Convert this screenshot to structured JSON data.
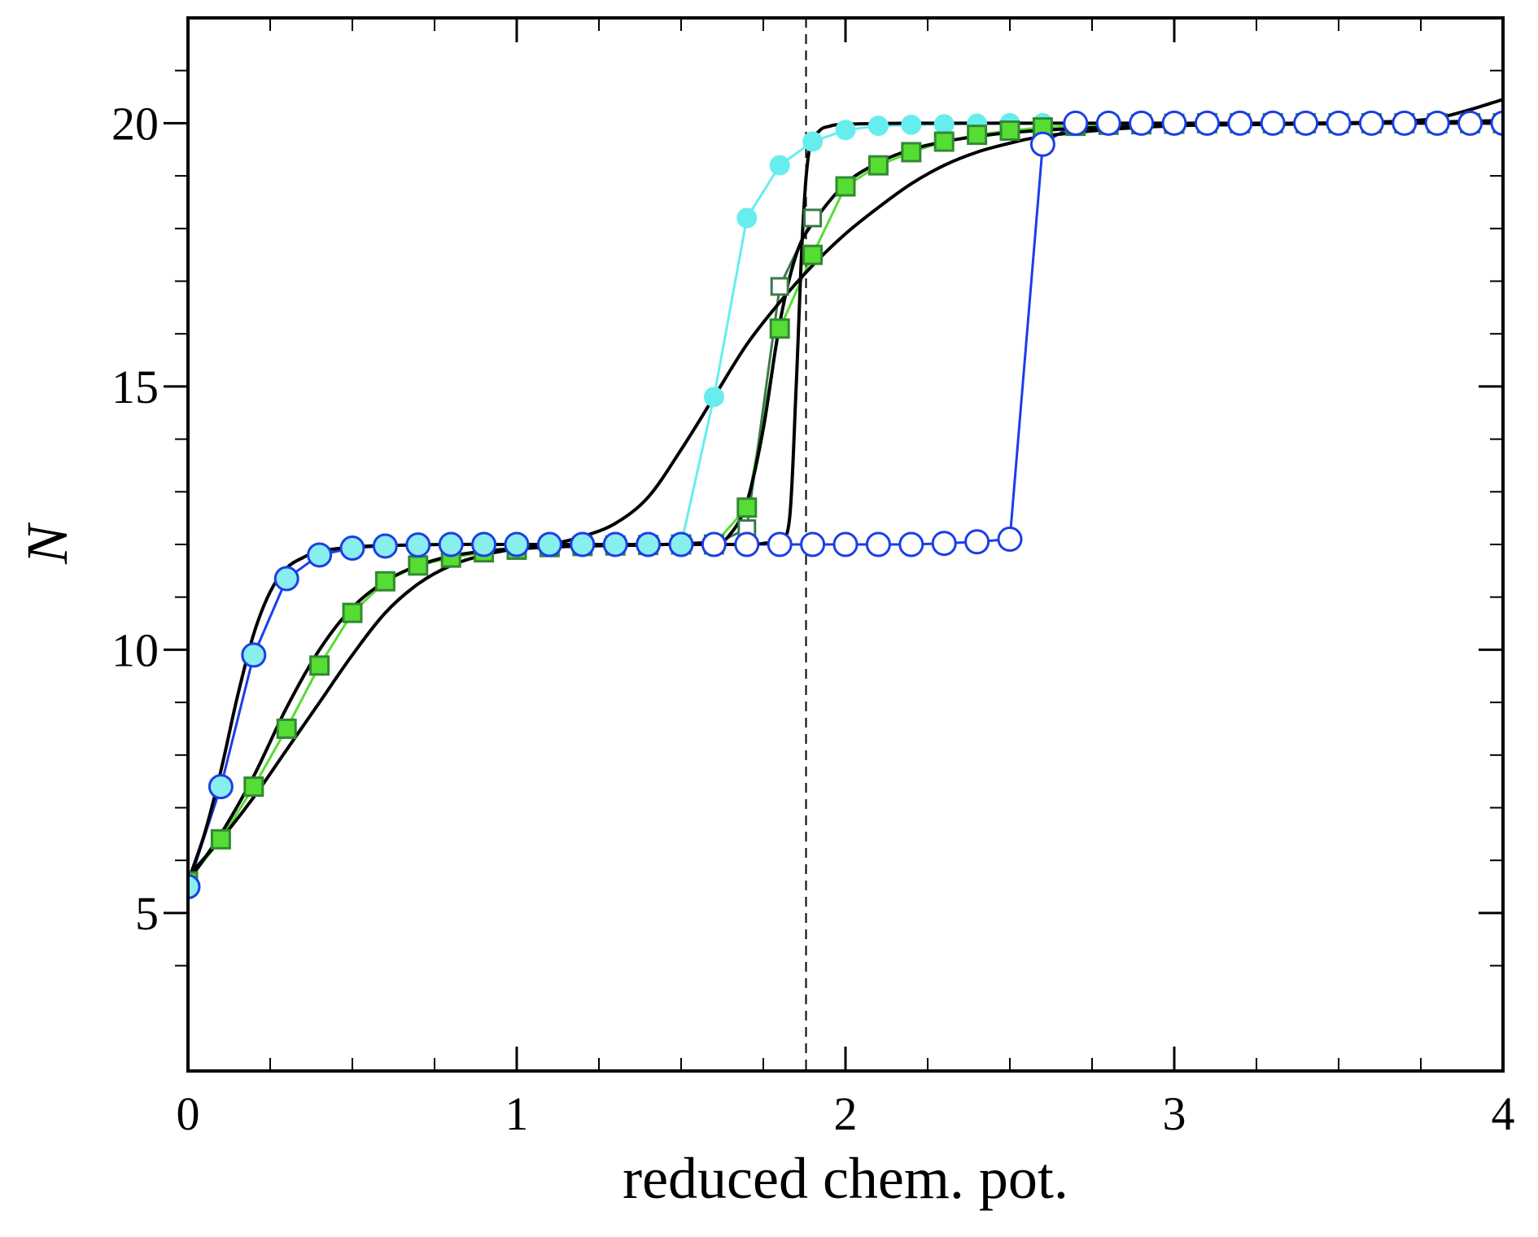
{
  "chart_data": {
    "type": "line",
    "title": "",
    "xlabel": "reduced chem. pot.",
    "ylabel": "N",
    "xlim": [
      0,
      4
    ],
    "ylim": [
      2,
      22
    ],
    "xticks": [
      0,
      1,
      2,
      3,
      4
    ],
    "xtick_labels": [
      "0",
      "1",
      "2",
      "3",
      "4"
    ],
    "x_minor_ticks": [
      0.25,
      0.5,
      0.75,
      1.25,
      1.5,
      1.75,
      2.25,
      2.5,
      2.75,
      3.25,
      3.5,
      3.75
    ],
    "yticks": [
      5,
      10,
      15,
      20
    ],
    "ytick_labels": [
      "5",
      "10",
      "15",
      "20"
    ],
    "y_minor_ticks": [
      4,
      6,
      7,
      8,
      9,
      11,
      12,
      13,
      14,
      16,
      17,
      18,
      19,
      21
    ],
    "vline": {
      "x": 1.88,
      "style": "dashed"
    },
    "series": [
      {
        "name": "cyan filled circles",
        "color": "#66eeee",
        "marker": "filled-circle",
        "x": [
          1.5,
          1.6,
          1.7,
          1.8,
          1.9,
          2.0,
          2.1,
          2.2,
          2.3,
          2.4,
          2.5,
          2.6,
          2.7,
          2.8,
          2.9,
          3.0,
          3.1,
          3.2,
          3.3,
          3.4,
          3.5,
          3.6,
          3.7,
          3.8,
          3.9,
          4.0
        ],
        "y": [
          12.0,
          14.8,
          18.2,
          19.2,
          19.65,
          19.87,
          19.95,
          19.97,
          19.98,
          19.99,
          20.0,
          20.0,
          20.0,
          20.0,
          20.0,
          20.0,
          20.0,
          20.0,
          20.0,
          20.0,
          20.0,
          20.0,
          20.0,
          20.0,
          20.0,
          20.0
        ]
      },
      {
        "name": "light green filled squares",
        "color": "#55dd33",
        "stroke": "#338833",
        "marker": "filled-square",
        "x": [
          0.0,
          0.1,
          0.2,
          0.3,
          0.4,
          0.5,
          0.6,
          0.7,
          0.8,
          0.9,
          1.0,
          1.1,
          1.2,
          1.3,
          1.4,
          1.5,
          1.6,
          1.7,
          1.8,
          1.9,
          2.0,
          2.1,
          2.2,
          2.3,
          2.4,
          2.5,
          2.6,
          2.7,
          2.8,
          2.9,
          3.0,
          3.1,
          3.2,
          3.3,
          3.4,
          3.5,
          3.6,
          3.7,
          3.8,
          3.9,
          4.0
        ],
        "y": [
          5.6,
          6.4,
          7.4,
          8.5,
          9.7,
          10.7,
          11.3,
          11.6,
          11.75,
          11.85,
          11.9,
          11.95,
          11.97,
          11.98,
          11.99,
          12.0,
          12.0,
          12.7,
          16.1,
          17.5,
          18.8,
          19.2,
          19.45,
          19.65,
          19.78,
          19.86,
          19.92,
          19.95,
          19.97,
          19.98,
          19.99,
          20.0,
          20.0,
          20.0,
          20.0,
          20.0,
          20.0,
          20.0,
          20.0,
          20.0,
          20.0
        ]
      },
      {
        "name": "dark green open squares",
        "color": "#3a7a4a",
        "marker": "open-square",
        "x": [
          1.6,
          1.7,
          1.8,
          1.9
        ],
        "y": [
          12.0,
          12.3,
          16.9,
          18.2
        ]
      },
      {
        "name": "blue open circles",
        "color": "#1a3ee8",
        "marker": "open-circle",
        "x": [
          1.6,
          1.7,
          1.8,
          1.9,
          2.0,
          2.1,
          2.2,
          2.3,
          2.4,
          2.5,
          2.6,
          2.7,
          2.8,
          2.9,
          3.0,
          3.1,
          3.2,
          3.3,
          3.4,
          3.5,
          3.6,
          3.7,
          3.8,
          3.9,
          4.0
        ],
        "y": [
          12.0,
          12.0,
          12.0,
          12.0,
          12.0,
          12.0,
          12.0,
          12.02,
          12.05,
          12.1,
          19.6,
          20.0,
          20.0,
          20.0,
          20.0,
          20.0,
          20.0,
          20.0,
          20.0,
          20.0,
          20.0,
          20.0,
          20.0,
          20.0,
          20.0
        ]
      },
      {
        "name": "blue open circles, cyan fill",
        "color": "#1a3ee8",
        "fill": "#88eeee",
        "marker": "open-circle-filled",
        "x": [
          0.0,
          0.1,
          0.2,
          0.3,
          0.4,
          0.5,
          0.6,
          0.7,
          0.8,
          0.9,
          1.0,
          1.1,
          1.2,
          1.3,
          1.4,
          1.5
        ],
        "y": [
          5.5,
          7.4,
          9.9,
          11.35,
          11.8,
          11.93,
          11.97,
          11.99,
          12.0,
          12.0,
          12.0,
          12.0,
          12.0,
          12.0,
          12.0,
          12.0
        ]
      },
      {
        "name": "black fit curve 1",
        "color": "#000000",
        "marker": "none",
        "x": [
          0.0,
          0.05,
          0.1,
          0.15,
          0.2,
          0.25,
          0.3,
          0.35,
          0.4,
          0.5,
          0.6,
          0.8,
          1.0,
          1.2,
          1.4,
          1.6,
          1.7,
          1.75,
          1.8,
          1.83,
          1.85,
          1.87,
          1.89,
          1.92,
          1.95,
          2.0,
          2.2,
          2.5,
          3.0,
          3.5,
          4.0
        ],
        "y": [
          5.6,
          6.5,
          7.7,
          9.1,
          10.3,
          11.1,
          11.55,
          11.75,
          11.87,
          11.95,
          11.98,
          12.0,
          12.0,
          12.0,
          12.0,
          12.0,
          12.0,
          12.02,
          12.1,
          12.5,
          15.0,
          18.0,
          19.5,
          19.85,
          19.94,
          19.98,
          20.0,
          20.0,
          20.0,
          20.0,
          20.0
        ]
      },
      {
        "name": "black fit curve 2",
        "color": "#000000",
        "marker": "none",
        "x": [
          0.0,
          0.1,
          0.2,
          0.3,
          0.4,
          0.5,
          0.6,
          0.7,
          0.8,
          0.9,
          1.0,
          1.2,
          1.4,
          1.6,
          1.65,
          1.7,
          1.75,
          1.8,
          1.85,
          1.9,
          2.0,
          2.1,
          2.2,
          2.3,
          2.4,
          2.5,
          2.7,
          3.0,
          3.5,
          4.0
        ],
        "y": [
          5.6,
          6.5,
          7.6,
          8.9,
          10.0,
          10.8,
          11.3,
          11.6,
          11.78,
          11.87,
          11.92,
          11.97,
          11.99,
          12.05,
          12.2,
          12.8,
          14.2,
          16.2,
          17.5,
          18.1,
          18.85,
          19.25,
          19.5,
          19.65,
          19.75,
          19.82,
          19.9,
          19.96,
          19.99,
          20.05
        ]
      },
      {
        "name": "black fit curve 3",
        "color": "#000000",
        "marker": "none",
        "x": [
          0.0,
          0.1,
          0.2,
          0.3,
          0.4,
          0.5,
          0.6,
          0.7,
          0.8,
          0.9,
          1.0,
          1.1,
          1.2,
          1.3,
          1.4,
          1.5,
          1.6,
          1.7,
          1.8,
          1.9,
          2.0,
          2.1,
          2.2,
          2.3,
          2.4,
          2.5,
          2.6,
          2.8,
          3.0,
          3.2,
          3.4,
          3.6,
          3.8,
          4.0
        ],
        "y": [
          5.7,
          6.4,
          7.2,
          8.1,
          9.0,
          9.9,
          10.7,
          11.25,
          11.6,
          11.8,
          11.92,
          12.0,
          12.15,
          12.4,
          12.9,
          13.8,
          14.8,
          15.8,
          16.6,
          17.3,
          17.9,
          18.4,
          18.85,
          19.2,
          19.45,
          19.62,
          19.75,
          19.88,
          19.95,
          19.98,
          20.0,
          20.02,
          20.1,
          20.45
        ]
      }
    ]
  }
}
